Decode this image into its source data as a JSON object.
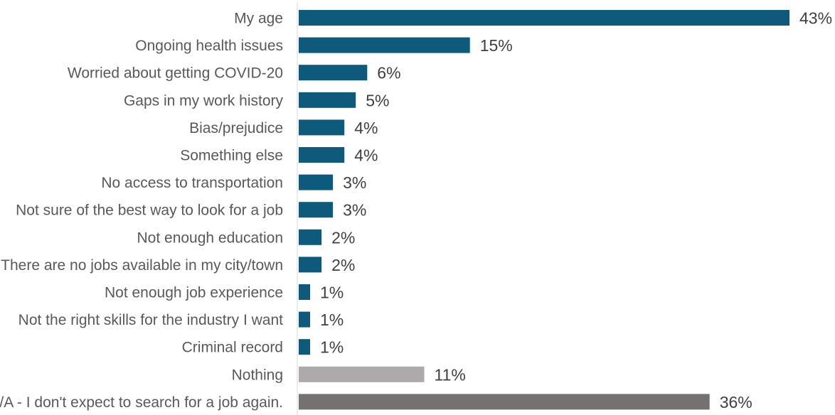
{
  "chart_data": {
    "type": "bar",
    "orientation": "horizontal",
    "categories": [
      "My age",
      "Ongoing health issues",
      "Worried about getting COVID-20",
      "Gaps in my work history",
      "Bias/prejudice",
      "Something else",
      "No access to transportation",
      "Not sure of the best way to look for a job",
      "Not enough education",
      "There are no jobs available in my city/town",
      "Not enough job experience",
      "Not the right skills for the industry I want",
      "Criminal record",
      "Nothing",
      "N/A - I don't expect to search for a job again."
    ],
    "values": [
      43,
      15,
      6,
      5,
      4,
      4,
      3,
      3,
      2,
      2,
      1,
      1,
      1,
      11,
      36
    ],
    "value_labels": [
      "43%",
      "15%",
      "6%",
      "5%",
      "4%",
      "4%",
      "3%",
      "3%",
      "2%",
      "2%",
      "1%",
      "1%",
      "1%",
      "11%",
      "36%"
    ],
    "unit": "%",
    "bar_colors": [
      "#0e5a7d",
      "#0e5a7d",
      "#0e5a7d",
      "#0e5a7d",
      "#0e5a7d",
      "#0e5a7d",
      "#0e5a7d",
      "#0e5a7d",
      "#0e5a7d",
      "#0e5a7d",
      "#0e5a7d",
      "#0e5a7d",
      "#0e5a7d",
      "#aeaaaa",
      "#767171"
    ],
    "title": "",
    "xlabel": "",
    "ylabel": "",
    "xlim": [
      0,
      43
    ],
    "grid": false,
    "legend": "none"
  }
}
